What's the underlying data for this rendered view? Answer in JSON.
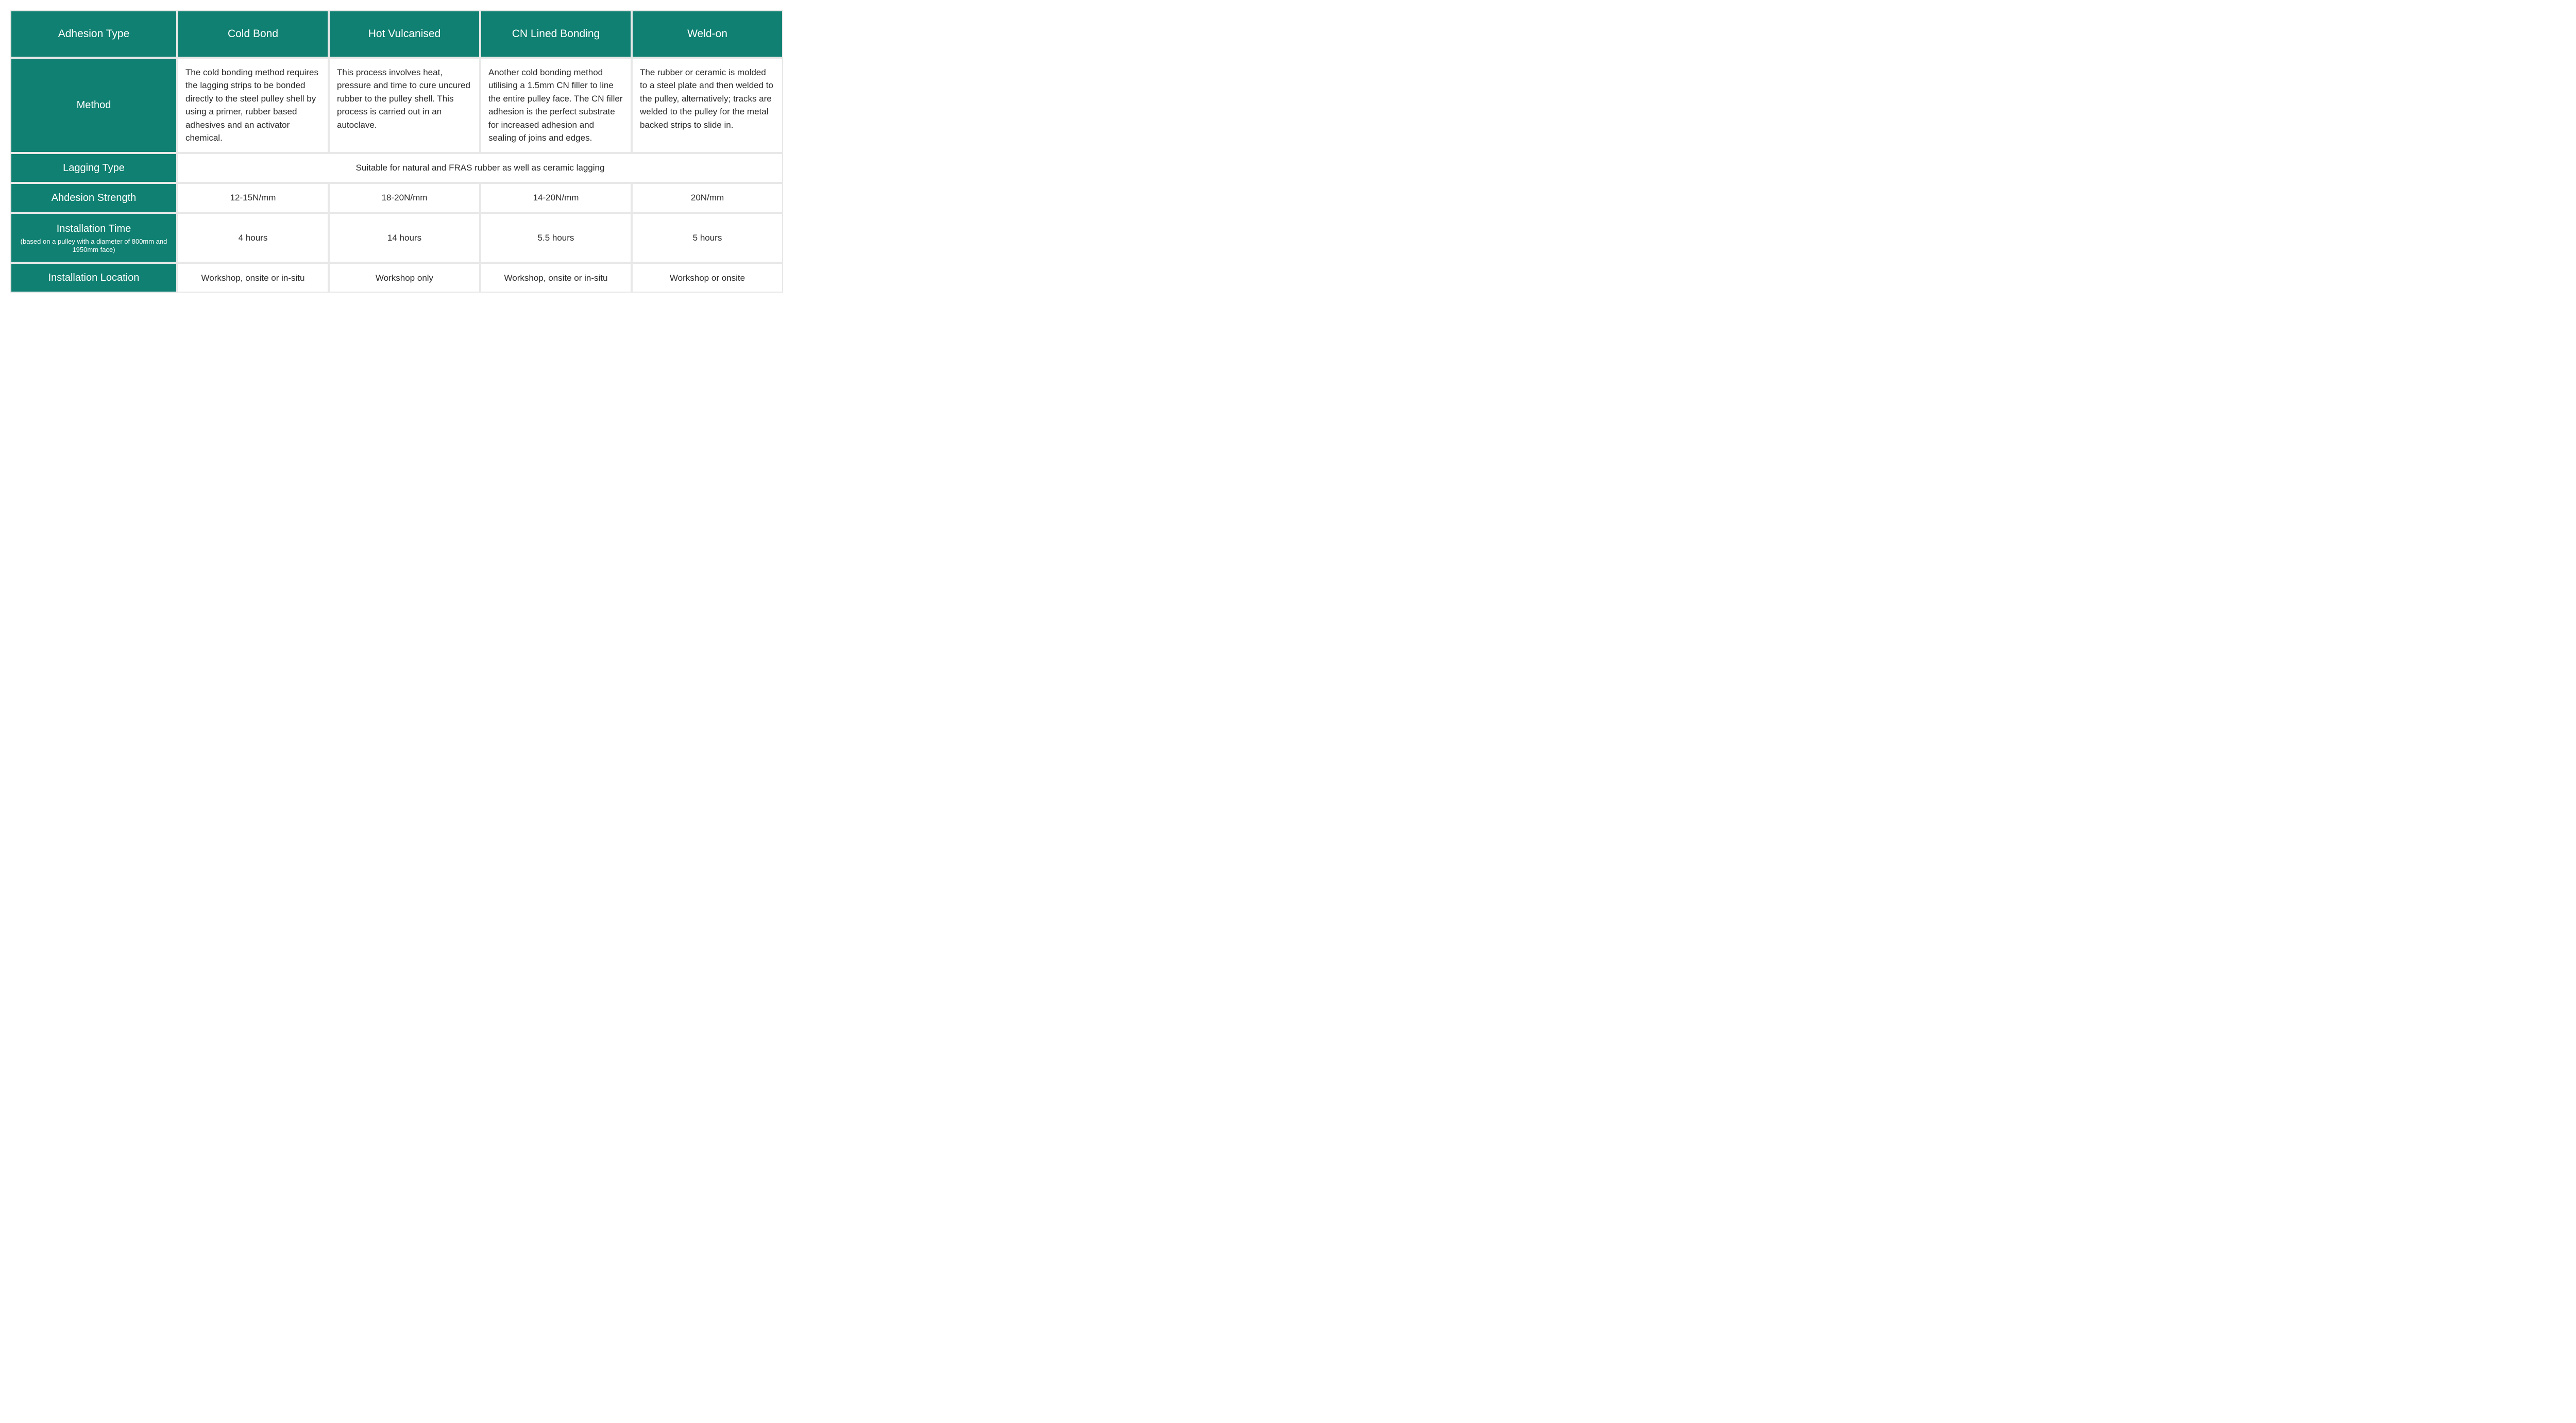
{
  "table": {
    "type": "table",
    "colors": {
      "header_bg": "#0f8071",
      "header_text": "#ffffff",
      "cell_bg": "#ffffff",
      "cell_text": "#2b2b2b",
      "border": "#e8e8e8"
    },
    "fonts": {
      "header_size_pt": 16,
      "rowlabel_size_pt": 15,
      "body_size_pt": 13,
      "subnote_size_pt": 10,
      "family": "Arial"
    },
    "columns": [
      "Adhesion Type",
      "Cold Bond",
      "Hot Vulcanised",
      "CN Lined Bonding",
      "Weld-on"
    ],
    "rows": {
      "method": {
        "label": "Method",
        "values": [
          "The cold bonding method requires the lagging strips to be bonded directly to the steel pulley shell by using a primer, rubber based adhesives and an activator chemical.",
          "This process involves heat, pressure and time to cure uncured rubber to the pulley shell. This process is carried out in an autoclave.",
          "Another cold bonding method utilising a 1.5mm CN filler to line the entire pulley face. The CN filler adhesion is the perfect substrate for increased adhesion and sealing of joins and edges.",
          "The rubber or ceramic is molded to a steel plate and then welded to the pulley, alternatively; tracks are welded to the pulley for the metal backed strips to slide in."
        ]
      },
      "lagging_type": {
        "label": "Lagging Type",
        "merged_value": "Suitable for natural and FRAS rubber as well as ceramic lagging"
      },
      "adhesion_strength": {
        "label": "Ahdesion Strength",
        "values": [
          "12-15N/mm",
          "18-20N/mm",
          "14-20N/mm",
          "20N/mm"
        ]
      },
      "install_time": {
        "label": "Installation Time",
        "subnote": "(based on a pulley with a diameter of 800mm and 1950mm face)",
        "values": [
          "4 hours",
          "14 hours",
          "5.5 hours",
          "5 hours"
        ]
      },
      "install_location": {
        "label": "Installation Location",
        "values": [
          "Workshop, onsite or in-situ",
          "Workshop only",
          "Workshop, onsite or in-situ",
          "Workshop or onsite"
        ]
      }
    }
  }
}
